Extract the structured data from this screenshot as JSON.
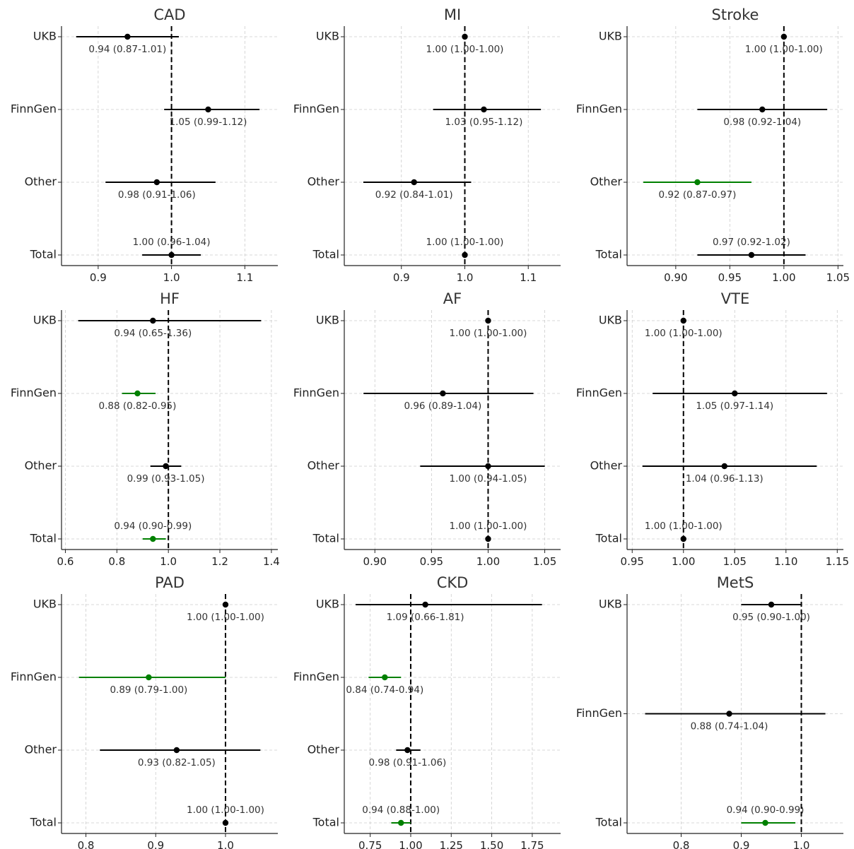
{
  "colors": {
    "default": "#000000",
    "significant": "#008000"
  },
  "chart_data": [
    {
      "type": "forest",
      "title": "CAD",
      "xlim": [
        0.85,
        1.145
      ],
      "xticks": [
        0.9,
        1.0,
        1.1
      ],
      "xtick_labels": [
        "0.9",
        "1.0",
        "1.1"
      ],
      "rows": [
        {
          "label": "UKB",
          "estimate": 0.94,
          "lower": 0.87,
          "upper": 1.01,
          "text": "0.94 (0.87-1.01)",
          "significant": false
        },
        {
          "label": "FinnGen",
          "estimate": 1.05,
          "lower": 0.99,
          "upper": 1.12,
          "text": "1.05 (0.99-1.12)",
          "significant": false
        },
        {
          "label": "Other",
          "estimate": 0.98,
          "lower": 0.91,
          "upper": 1.06,
          "text": "0.98 (0.91-1.06)",
          "significant": false
        },
        {
          "label": "Total",
          "estimate": 1.0,
          "lower": 0.96,
          "upper": 1.04,
          "text": "1.00 (0.96-1.04)",
          "significant": false
        }
      ]
    },
    {
      "type": "forest",
      "title": "MI",
      "xlim": [
        0.81,
        1.151
      ],
      "xticks": [
        0.9,
        1.0,
        1.1
      ],
      "xtick_labels": [
        "0.9",
        "1.0",
        "1.1"
      ],
      "rows": [
        {
          "label": "UKB",
          "estimate": 1.0,
          "lower": 1.0,
          "upper": 1.0,
          "text": "1.00 (1.00-1.00)",
          "significant": false
        },
        {
          "label": "FinnGen",
          "estimate": 1.03,
          "lower": 0.95,
          "upper": 1.12,
          "text": "1.03 (0.95-1.12)",
          "significant": false
        },
        {
          "label": "Other",
          "estimate": 0.92,
          "lower": 0.84,
          "upper": 1.01,
          "text": "0.92 (0.84-1.01)",
          "significant": false
        },
        {
          "label": "Total",
          "estimate": 1.0,
          "lower": 1.0,
          "upper": 1.0,
          "text": "1.00 (1.00-1.00)",
          "significant": false
        }
      ]
    },
    {
      "type": "forest",
      "title": "Stroke",
      "xlim": [
        0.855,
        1.055
      ],
      "xticks": [
        0.9,
        0.95,
        1.0,
        1.05
      ],
      "xtick_labels": [
        "0.90",
        "0.95",
        "1.00",
        "1.05"
      ],
      "rows": [
        {
          "label": "UKB",
          "estimate": 1.0,
          "lower": 1.0,
          "upper": 1.0,
          "text": "1.00 (1.00-1.00)",
          "significant": false
        },
        {
          "label": "FinnGen",
          "estimate": 0.98,
          "lower": 0.92,
          "upper": 1.04,
          "text": "0.98 (0.92-1.04)",
          "significant": false
        },
        {
          "label": "Other",
          "estimate": 0.92,
          "lower": 0.87,
          "upper": 0.97,
          "text": "0.92 (0.87-0.97)",
          "significant": true
        },
        {
          "label": "Total",
          "estimate": 0.97,
          "lower": 0.92,
          "upper": 1.02,
          "text": "0.97 (0.92-1.02)",
          "significant": false
        }
      ]
    },
    {
      "type": "forest",
      "title": "HF",
      "xlim": [
        0.585,
        1.425
      ],
      "xticks": [
        0.6,
        0.8,
        1.0,
        1.2,
        1.4
      ],
      "xtick_labels": [
        "0.6",
        "0.8",
        "1.0",
        "1.2",
        "1.4"
      ],
      "rows": [
        {
          "label": "UKB",
          "estimate": 0.94,
          "lower": 0.65,
          "upper": 1.36,
          "text": "0.94 (0.65-1.36)",
          "significant": false
        },
        {
          "label": "FinnGen",
          "estimate": 0.88,
          "lower": 0.82,
          "upper": 0.95,
          "text": "0.88 (0.82-0.95)",
          "significant": true
        },
        {
          "label": "Other",
          "estimate": 0.99,
          "lower": 0.93,
          "upper": 1.05,
          "text": "0.99 (0.93-1.05)",
          "significant": false
        },
        {
          "label": "Total",
          "estimate": 0.94,
          "lower": 0.9,
          "upper": 0.99,
          "text": "0.94 (0.90-0.99)",
          "significant": true
        }
      ]
    },
    {
      "type": "forest",
      "title": "AF",
      "xlim": [
        0.873,
        1.064
      ],
      "xticks": [
        0.9,
        0.95,
        1.0,
        1.05
      ],
      "xtick_labels": [
        "0.90",
        "0.95",
        "1.00",
        "1.05"
      ],
      "rows": [
        {
          "label": "UKB",
          "estimate": 1.0,
          "lower": 1.0,
          "upper": 1.0,
          "text": "1.00 (1.00-1.00)",
          "significant": false
        },
        {
          "label": "FinnGen",
          "estimate": 0.96,
          "lower": 0.89,
          "upper": 1.04,
          "text": "0.96 (0.89-1.04)",
          "significant": false
        },
        {
          "label": "Other",
          "estimate": 1.0,
          "lower": 0.94,
          "upper": 1.05,
          "text": "1.00 (0.94-1.05)",
          "significant": false
        },
        {
          "label": "Total",
          "estimate": 1.0,
          "lower": 1.0,
          "upper": 1.0,
          "text": "1.00 (1.00-1.00)",
          "significant": false
        }
      ]
    },
    {
      "type": "forest",
      "title": "VTE",
      "xlim": [
        0.945,
        1.156
      ],
      "xticks": [
        0.95,
        1.0,
        1.05,
        1.1,
        1.15
      ],
      "xtick_labels": [
        "0.95",
        "1.00",
        "1.05",
        "1.10",
        "1.15"
      ],
      "rows": [
        {
          "label": "UKB",
          "estimate": 1.0,
          "lower": 1.0,
          "upper": 1.0,
          "text": "1.00 (1.00-1.00)",
          "significant": false
        },
        {
          "label": "FinnGen",
          "estimate": 1.05,
          "lower": 0.97,
          "upper": 1.14,
          "text": "1.05 (0.97-1.14)",
          "significant": false
        },
        {
          "label": "Other",
          "estimate": 1.04,
          "lower": 0.96,
          "upper": 1.13,
          "text": "1.04 (0.96-1.13)",
          "significant": false
        },
        {
          "label": "Total",
          "estimate": 1.0,
          "lower": 1.0,
          "upper": 1.0,
          "text": "1.00 (1.00-1.00)",
          "significant": false
        }
      ]
    },
    {
      "type": "forest",
      "title": "PAD",
      "xlim": [
        0.765,
        1.075
      ],
      "xticks": [
        0.8,
        0.9,
        1.0
      ],
      "xtick_labels": [
        "0.8",
        "0.9",
        "1.0"
      ],
      "rows": [
        {
          "label": "UKB",
          "estimate": 1.0,
          "lower": 1.0,
          "upper": 1.0,
          "text": "1.00 (1.00-1.00)",
          "significant": false
        },
        {
          "label": "FinnGen",
          "estimate": 0.89,
          "lower": 0.79,
          "upper": 1.0,
          "text": "0.89 (0.79-1.00)",
          "significant": true
        },
        {
          "label": "Other",
          "estimate": 0.93,
          "lower": 0.82,
          "upper": 1.05,
          "text": "0.93 (0.82-1.05)",
          "significant": false
        },
        {
          "label": "Total",
          "estimate": 1.0,
          "lower": 1.0,
          "upper": 1.0,
          "text": "1.00 (1.00-1.00)",
          "significant": false
        }
      ]
    },
    {
      "type": "forest",
      "title": "CKD",
      "xlim": [
        0.59,
        1.925
      ],
      "xticks": [
        0.75,
        1.0,
        1.25,
        1.5,
        1.75
      ],
      "xtick_labels": [
        "0.75",
        "1.00",
        "1.25",
        "1.50",
        "1.75"
      ],
      "rows": [
        {
          "label": "UKB",
          "estimate": 1.09,
          "lower": 0.66,
          "upper": 1.81,
          "text": "1.09 (0.66-1.81)",
          "significant": false
        },
        {
          "label": "FinnGen",
          "estimate": 0.84,
          "lower": 0.74,
          "upper": 0.94,
          "text": "0.84 (0.74-0.94)",
          "significant": true
        },
        {
          "label": "Other",
          "estimate": 0.98,
          "lower": 0.91,
          "upper": 1.06,
          "text": "0.98 (0.91-1.06)",
          "significant": false
        },
        {
          "label": "Total",
          "estimate": 0.94,
          "lower": 0.88,
          "upper": 1.0,
          "text": "0.94 (0.88-1.00)",
          "significant": true
        }
      ]
    },
    {
      "type": "forest",
      "title": "MetS",
      "xlim": [
        0.71,
        1.07
      ],
      "xticks": [
        0.8,
        0.9,
        1.0
      ],
      "xtick_labels": [
        "0.8",
        "0.9",
        "1.0"
      ],
      "rows": [
        {
          "label": "UKB",
          "estimate": 0.95,
          "lower": 0.9,
          "upper": 1.0,
          "text": "0.95 (0.90-1.00)",
          "significant": false
        },
        {
          "label": "FinnGen",
          "estimate": 0.88,
          "lower": 0.74,
          "upper": 1.04,
          "text": "0.88 (0.74-1.04)",
          "significant": false
        },
        {
          "label": "Total",
          "estimate": 0.94,
          "lower": 0.9,
          "upper": 0.99,
          "text": "0.94 (0.90-0.99)",
          "significant": true
        }
      ]
    }
  ]
}
